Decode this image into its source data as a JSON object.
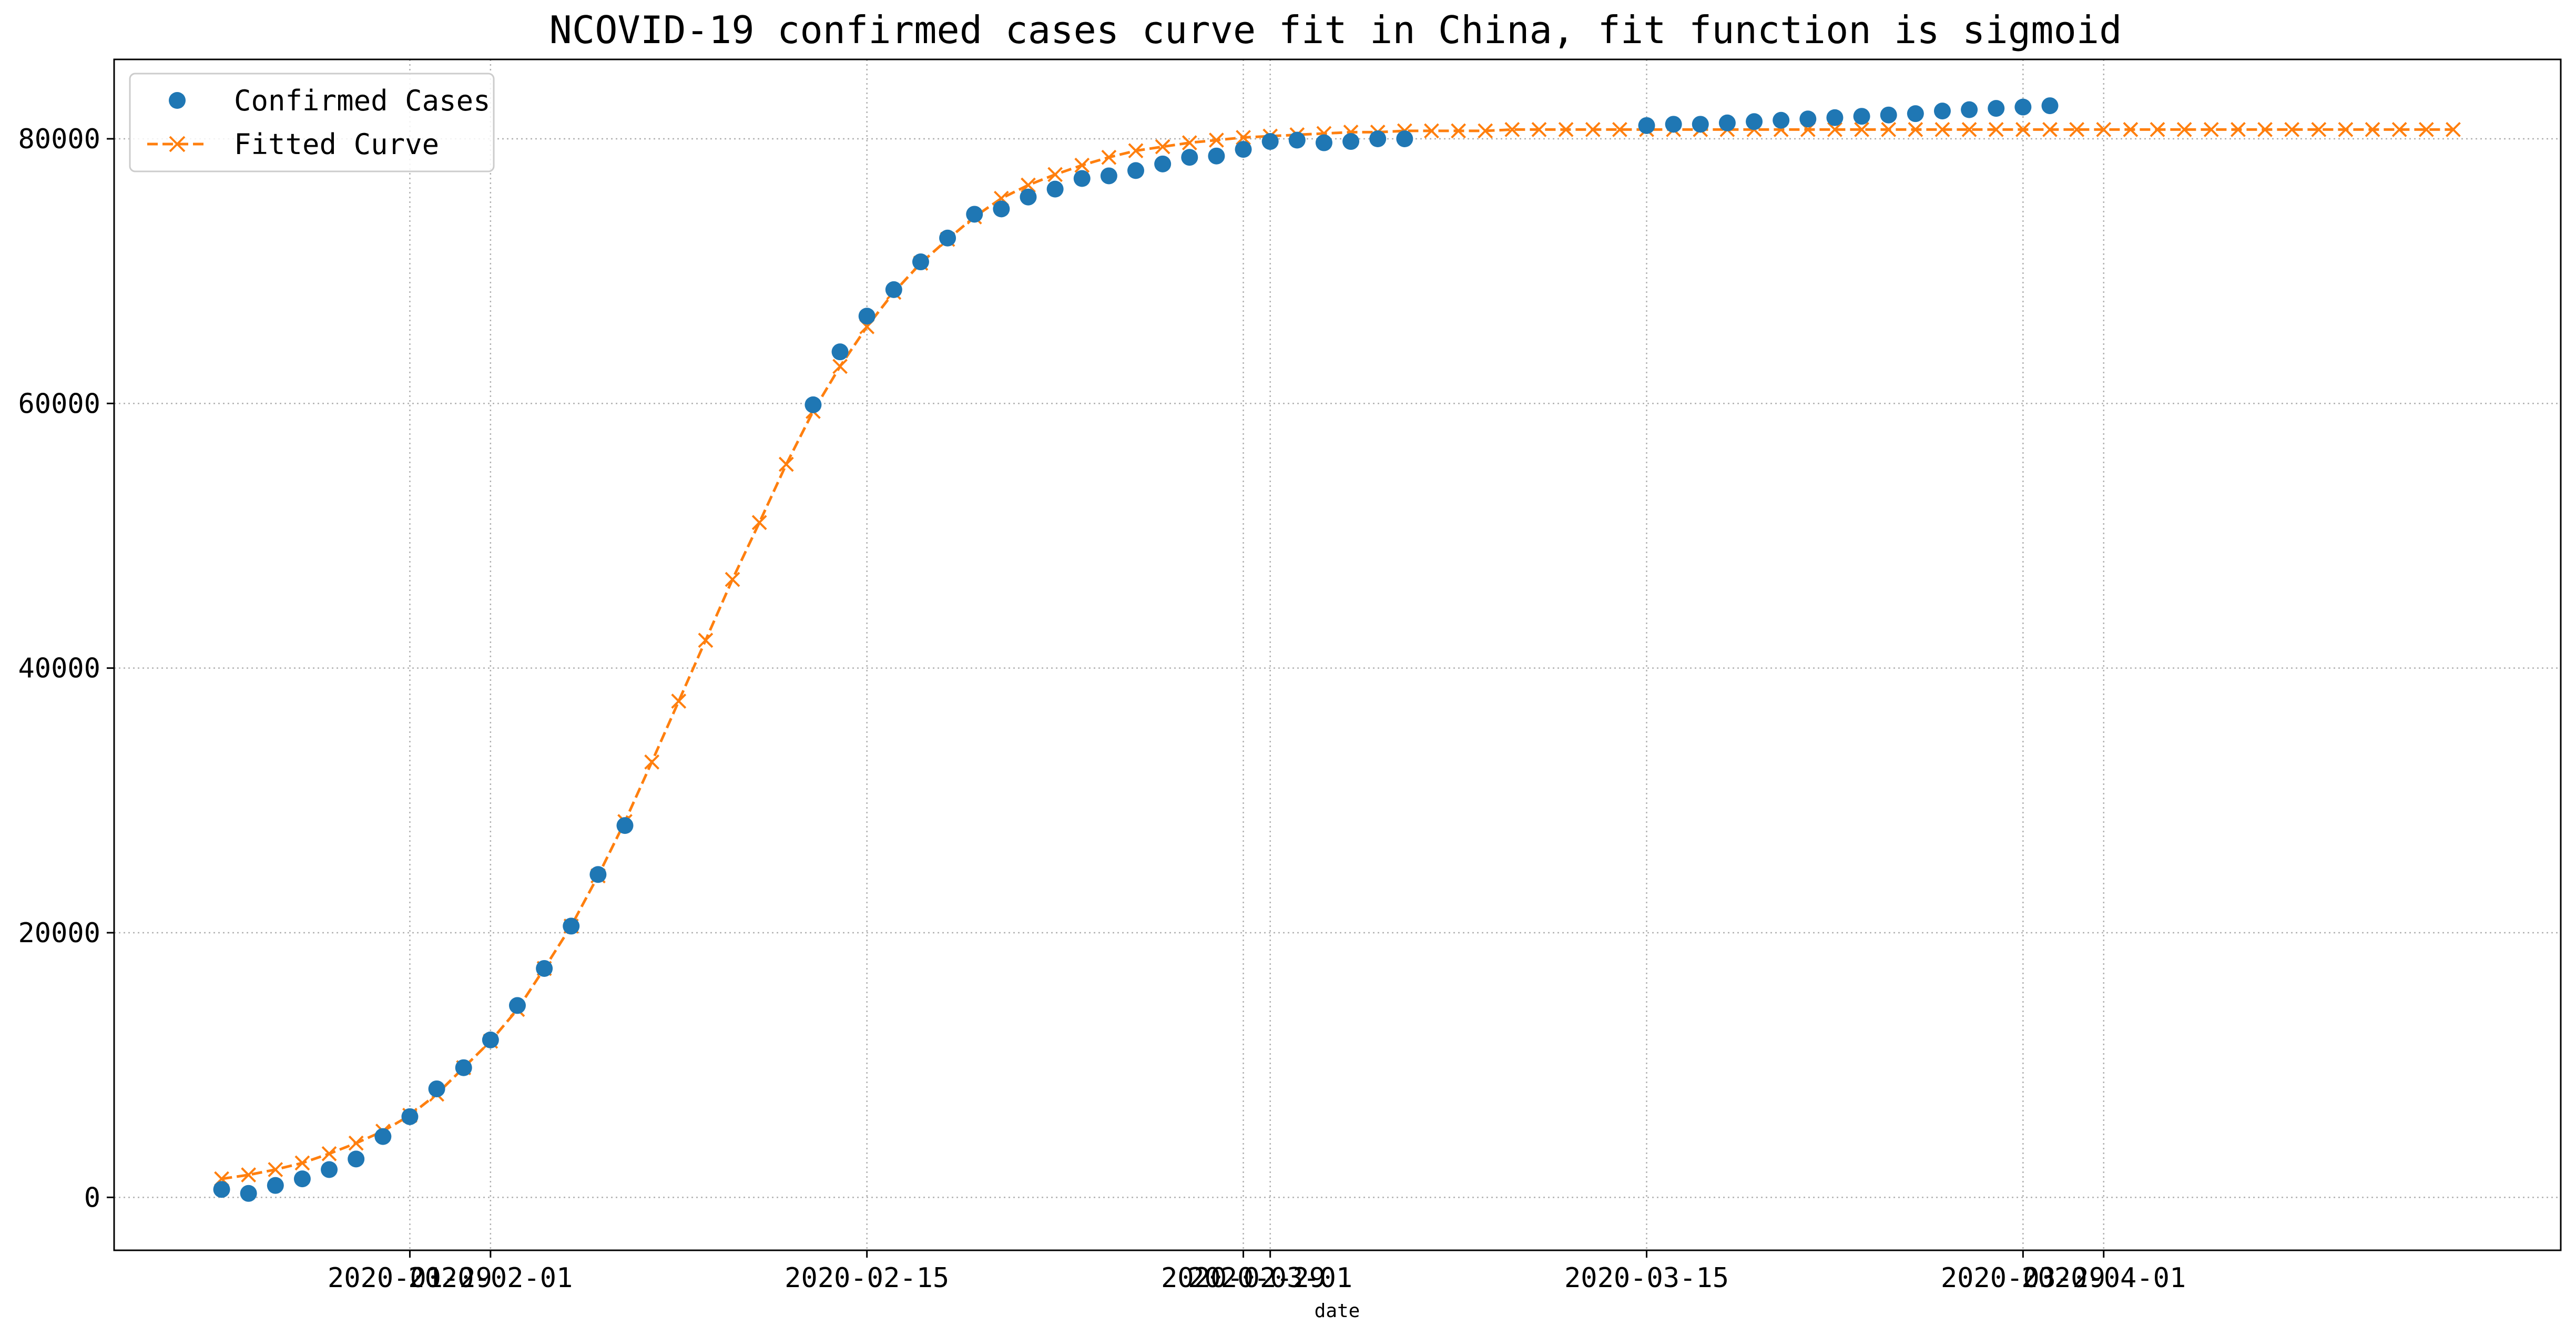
{
  "chart_data": {
    "type": "line",
    "title": "NCOVID-19 confirmed cases curve fit in China, fit function is sigmoid",
    "xlabel": "date",
    "ylabel": "",
    "x_axis_type": "date",
    "xlim": [
      "2020-01-18",
      "2020-04-18"
    ],
    "ylim": [
      -4000,
      86000
    ],
    "grid": true,
    "grid_style": "dotted",
    "legend_position": "top-left",
    "x_tick_labels": [
      "2020-01-29",
      "2020-02-01",
      "2020-02-15",
      "2020-02-29",
      "2020-03-01",
      "2020-03-15",
      "2020-03-29",
      "2020-04-01"
    ],
    "y_ticks": [
      0,
      20000,
      40000,
      60000,
      80000
    ],
    "colors": {
      "confirmed": "#1f77b4",
      "fitted": "#ff7f0e",
      "grid": "#b0b0b0"
    },
    "series": [
      {
        "name": "Confirmed Cases",
        "style": "marker-circle",
        "x": [
          "2020-01-22",
          "2020-01-23",
          "2020-01-24",
          "2020-01-25",
          "2020-01-26",
          "2020-01-27",
          "2020-01-28",
          "2020-01-29",
          "2020-01-30",
          "2020-01-31",
          "2020-02-01",
          "2020-02-02",
          "2020-02-03",
          "2020-02-04",
          "2020-02-05",
          "2020-02-06",
          "2020-02-07",
          "2020-02-08",
          "2020-02-09",
          "2020-02-10",
          "2020-02-11",
          "2020-02-12",
          "2020-02-13",
          "2020-02-14",
          "2020-02-15",
          "2020-02-16",
          "2020-02-17",
          "2020-02-18",
          "2020-02-19",
          "2020-02-20",
          "2020-02-21",
          "2020-02-22",
          "2020-02-23",
          "2020-02-24",
          "2020-02-25",
          "2020-02-26",
          "2020-02-27",
          "2020-02-28",
          "2020-02-29",
          "2020-03-01",
          "2020-03-02",
          "2020-03-03",
          "2020-03-04",
          "2020-03-05",
          "2020-03-06",
          "2020-03-15",
          "2020-03-16",
          "2020-03-17",
          "2020-03-18",
          "2020-03-19",
          "2020-03-20",
          "2020-03-21",
          "2020-03-22",
          "2020-03-23",
          "2020-03-24",
          "2020-03-25",
          "2020-03-26",
          "2020-03-27",
          "2020-03-28",
          "2020-03-29",
          "2020-03-30"
        ],
        "values": [
          600,
          300,
          900,
          1400,
          2100,
          2900,
          4600,
          6100,
          8200,
          9800,
          11900,
          14500,
          17300,
          20500,
          24400,
          28100,
          null,
          null,
          null,
          null,
          null,
          null,
          59900,
          63900,
          66600,
          68600,
          70700,
          72500,
          74300,
          74700,
          75600,
          76200,
          77000,
          77200,
          77600,
          78100,
          78600,
          78700,
          79200,
          79800,
          79900,
          79700,
          79800,
          80000,
          80000,
          81000,
          81100,
          81100,
          81200,
          81300,
          81400,
          81500,
          81600,
          81700,
          81800,
          81900,
          82100,
          82200,
          82300,
          82400,
          82500
        ]
      },
      {
        "name": "Fitted Curve",
        "style": "dashed-line-x-markers",
        "x": [
          "2020-01-22",
          "2020-01-23",
          "2020-01-24",
          "2020-01-25",
          "2020-01-26",
          "2020-01-27",
          "2020-01-28",
          "2020-01-29",
          "2020-01-30",
          "2020-01-31",
          "2020-02-01",
          "2020-02-02",
          "2020-02-03",
          "2020-02-04",
          "2020-02-05",
          "2020-02-06",
          "2020-02-07",
          "2020-02-08",
          "2020-02-09",
          "2020-02-10",
          "2020-02-11",
          "2020-02-12",
          "2020-02-13",
          "2020-02-14",
          "2020-02-15",
          "2020-02-16",
          "2020-02-17",
          "2020-02-18",
          "2020-02-19",
          "2020-02-20",
          "2020-02-21",
          "2020-02-22",
          "2020-02-23",
          "2020-02-24",
          "2020-02-25",
          "2020-02-26",
          "2020-02-27",
          "2020-02-28",
          "2020-02-29",
          "2020-03-01",
          "2020-03-02",
          "2020-03-03",
          "2020-03-04",
          "2020-03-05",
          "2020-03-06",
          "2020-03-07",
          "2020-03-08",
          "2020-03-09",
          "2020-03-10",
          "2020-03-11",
          "2020-03-12",
          "2020-03-13",
          "2020-03-14",
          "2020-03-15",
          "2020-03-16",
          "2020-03-17",
          "2020-03-18",
          "2020-03-19",
          "2020-03-20",
          "2020-03-21",
          "2020-03-22",
          "2020-03-23",
          "2020-03-24",
          "2020-03-25",
          "2020-03-26",
          "2020-03-27",
          "2020-03-28",
          "2020-03-29",
          "2020-03-30",
          "2020-03-31",
          "2020-04-01",
          "2020-04-02",
          "2020-04-03",
          "2020-04-04",
          "2020-04-05",
          "2020-04-06",
          "2020-04-07",
          "2020-04-08",
          "2020-04-09",
          "2020-04-10",
          "2020-04-11",
          "2020-04-12",
          "2020-04-13",
          "2020-04-14"
        ],
        "values": [
          1400,
          1700,
          2100,
          2600,
          3300,
          4100,
          5000,
          6200,
          7800,
          9800,
          11800,
          14200,
          17300,
          20500,
          24300,
          28400,
          32900,
          37500,
          42100,
          46700,
          51000,
          55400,
          59400,
          62800,
          65800,
          68400,
          70600,
          72400,
          74100,
          75500,
          76500,
          77300,
          78000,
          78600,
          79100,
          79400,
          79700,
          79900,
          80100,
          80200,
          80300,
          80400,
          80500,
          80500,
          80600,
          80600,
          80600,
          80600,
          80700,
          80700,
          80700,
          80700,
          80700,
          80700,
          80700,
          80700,
          80700,
          80700,
          80700,
          80700,
          80700,
          80700,
          80700,
          80700,
          80700,
          80700,
          80700,
          80700,
          80700,
          80700,
          80700,
          80700,
          80700,
          80700,
          80700,
          80700,
          80700,
          80700,
          80700,
          80700,
          80700,
          80700,
          80700,
          80700
        ]
      }
    ]
  }
}
